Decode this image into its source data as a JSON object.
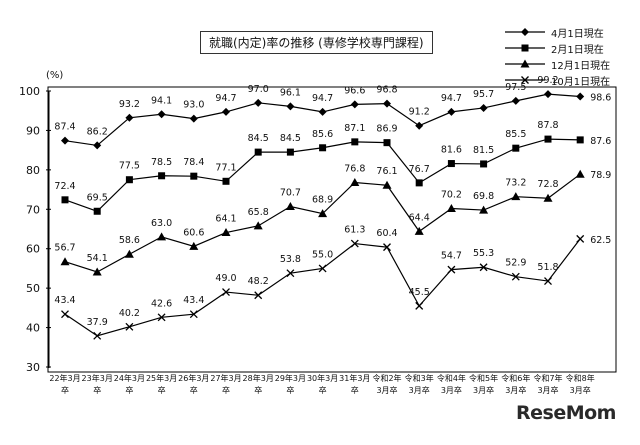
{
  "chart_data": {
    "type": "line",
    "title": "就職(内定)率の推移 (専修学校専門課程)",
    "ylabel": "(%)",
    "ylim": [
      30,
      100
    ],
    "yticks": [
      30,
      40,
      50,
      60,
      70,
      80,
      90,
      100
    ],
    "grid": false,
    "legend_position": "top-right",
    "categories": [
      "22年3月\n卒",
      "23年3月\n卒",
      "24年3月\n卒",
      "25年3月\n卒",
      "26年3月\n卒",
      "27年3月\n卒",
      "28年3月\n卒",
      "29年3月\n卒",
      "30年3月\n卒",
      "31年3月\n卒",
      "令和2年\n3月卒",
      "令和3年\n3月卒",
      "令和4年\n3月卒",
      "令和5年\n3月卒",
      "令和6年\n3月卒",
      "令和7年\n3月卒",
      "令和8年\n3月卒"
    ],
    "series": [
      {
        "name": "4月1日現在",
        "marker": "diamond",
        "values": [
          87.4,
          86.2,
          93.2,
          94.1,
          93.0,
          94.7,
          97.0,
          96.1,
          94.7,
          96.6,
          96.8,
          91.2,
          94.7,
          95.7,
          97.5,
          99.2,
          98.6
        ]
      },
      {
        "name": "2月1日現在",
        "marker": "square",
        "values": [
          72.4,
          69.5,
          77.5,
          78.5,
          78.4,
          77.1,
          84.5,
          84.5,
          85.6,
          87.1,
          86.9,
          76.7,
          81.6,
          81.5,
          85.5,
          87.8,
          87.6
        ]
      },
      {
        "name": "12月1日現在",
        "marker": "triangle",
        "values": [
          56.7,
          54.1,
          58.6,
          63.0,
          60.6,
          64.1,
          65.8,
          70.7,
          68.9,
          76.8,
          76.1,
          64.4,
          70.2,
          69.8,
          73.2,
          72.8,
          78.9
        ]
      },
      {
        "name": "10月1日現在",
        "marker": "x",
        "values": [
          43.4,
          37.9,
          40.2,
          42.6,
          43.4,
          49.0,
          48.2,
          53.8,
          55.0,
          61.3,
          60.4,
          45.5,
          54.7,
          55.3,
          52.9,
          51.8,
          62.5
        ]
      }
    ],
    "labels": [
      [
        "87.4",
        "86.2",
        "93.2",
        "94.1",
        "93.0",
        "94.7",
        "97.0",
        "96.1",
        "94.7",
        "96.6",
        "96.8",
        "91.2",
        "94.7",
        "95.7",
        "97.5",
        "99.2",
        "98.6"
      ],
      [
        "72.4",
        "69.5",
        "77.5",
        "78.5",
        "78.4",
        "77.1",
        "84.5",
        "84.5",
        "85.6",
        "87.1",
        "86.9",
        "76.7",
        "81.6",
        "81.5",
        "85.5",
        "87.8",
        "87.6"
      ],
      [
        "56.7",
        "54.1",
        "58.6",
        "63.0",
        "60.6",
        "64.1",
        "65.8",
        "70.7",
        "68.9",
        "76.8",
        "76.1",
        "64.4",
        "70.2",
        "69.8",
        "73.2",
        "72.8",
        "78.9"
      ],
      [
        "43.4",
        "37.9",
        "40.2",
        "42.6",
        "43.4",
        "49.0",
        "48.2",
        "53.8",
        "55.0",
        "61.3",
        "60.4",
        "45.5",
        "54.7",
        "55.3",
        "52.9",
        "51.8",
        "62.5"
      ]
    ]
  },
  "watermark": {
    "brand": "ReseMom",
    "kana": "リセマム"
  }
}
